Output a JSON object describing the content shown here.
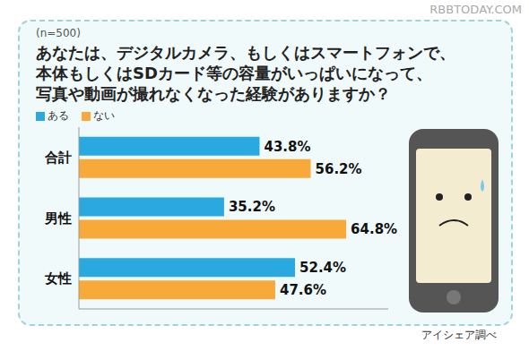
{
  "chart_data": {
    "type": "bar",
    "subtitle": "(n=500)",
    "title": [
      "あなたは、デジタルカメラ、もしくはスマートフォンで、",
      "本体もしくはSDカード等の容量がいっぱいになって、",
      "写真や動画が撮れなくなった経験がありますか？"
    ],
    "categories": [
      "合計",
      "男性",
      "女性"
    ],
    "series": [
      {
        "name": "ある",
        "color": "#29a9e0",
        "values": [
          43.8,
          35.2,
          52.4
        ],
        "value_labels": [
          "43.8%",
          "35.2%",
          "52.4%"
        ]
      },
      {
        "name": "ない",
        "color": "#f7a93a",
        "values": [
          56.2,
          64.8,
          47.6
        ],
        "value_labels": [
          "56.2%",
          "64.8%",
          "47.6%"
        ]
      }
    ],
    "xlim": [
      0,
      75
    ],
    "orientation": "horizontal",
    "data_labels": true,
    "tick_labels": "y",
    "legend": "top-left",
    "grid": false,
    "annotations": [
      "アイシェア調べ",
      "RBBTODAY.COM"
    ]
  }
}
